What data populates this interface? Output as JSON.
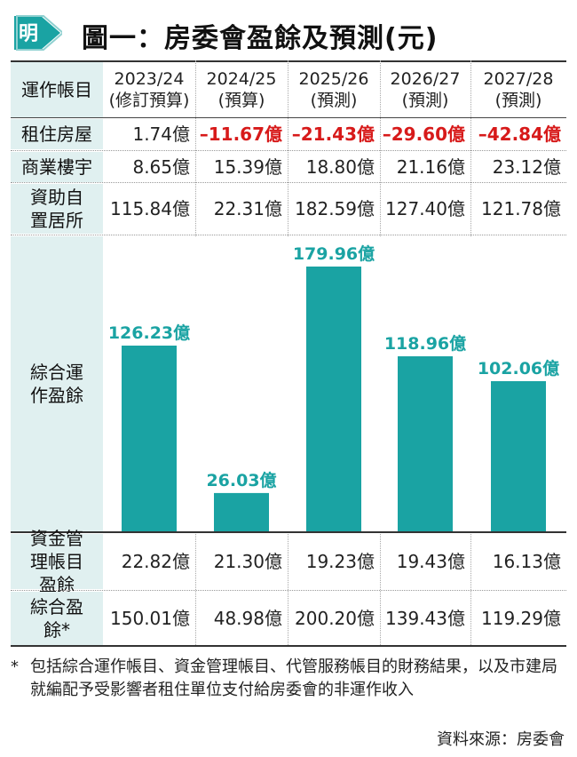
{
  "title": "圖一：房委會盈餘及預測(元)",
  "logo_text": "明",
  "colors": {
    "bar": "#1aa3a3",
    "label_bg": "#e0f0f0",
    "negative": "#d71a1a"
  },
  "header_label": "運作帳目",
  "columns": [
    {
      "year": "2023/24",
      "note": "(修訂預算)"
    },
    {
      "year": "2024/25",
      "note": "(預算)"
    },
    {
      "year": "2025/26",
      "note": "(預測)"
    },
    {
      "year": "2026/27",
      "note": "(預測)"
    },
    {
      "year": "2027/28",
      "note": "(預測)"
    }
  ],
  "rows_top": [
    {
      "label": "租住房屋",
      "values": [
        "1.74億",
        "–11.67億",
        "–21.43億",
        "–29.60億",
        "–42.84億"
      ],
      "negative": [
        false,
        true,
        true,
        true,
        true
      ]
    },
    {
      "label": "商業樓宇",
      "values": [
        "8.65億",
        "15.39億",
        "18.80億",
        "21.16億",
        "23.12億"
      ],
      "negative": [
        false,
        false,
        false,
        false,
        false
      ]
    },
    {
      "label": "資助自置居所",
      "values": [
        "115.84億",
        "22.31億",
        "182.59億",
        "127.40億",
        "121.78億"
      ],
      "negative": [
        false,
        false,
        false,
        false,
        false
      ]
    }
  ],
  "chart_row_label": "綜合運作盈餘",
  "chart_data": {
    "type": "bar",
    "categories": [
      "2023/24",
      "2024/25",
      "2025/26",
      "2026/27",
      "2027/28"
    ],
    "values": [
      126.23,
      26.03,
      179.96,
      118.96,
      102.06
    ],
    "value_labels": [
      "126.23億",
      "26.03億",
      "179.96億",
      "118.96億",
      "102.06億"
    ],
    "ylim": [
      0,
      179.96
    ],
    "grid": false
  },
  "rows_bottom": [
    {
      "label": "資金管理帳目盈餘",
      "values": [
        "22.82億",
        "21.30億",
        "19.23億",
        "19.43億",
        "16.13億"
      ]
    },
    {
      "label": "綜合盈餘*",
      "values": [
        "150.01億",
        "48.98億",
        "200.20億",
        "139.43億",
        "119.29億"
      ]
    }
  ],
  "footnote": {
    "star": "*",
    "text": "包括綜合運作帳目、資金管理帳目、代管服務帳目的財務結果，以及市建局就編配予受影響者租住單位支付給房委會的非運作收入"
  },
  "source": "資料來源：房委會"
}
